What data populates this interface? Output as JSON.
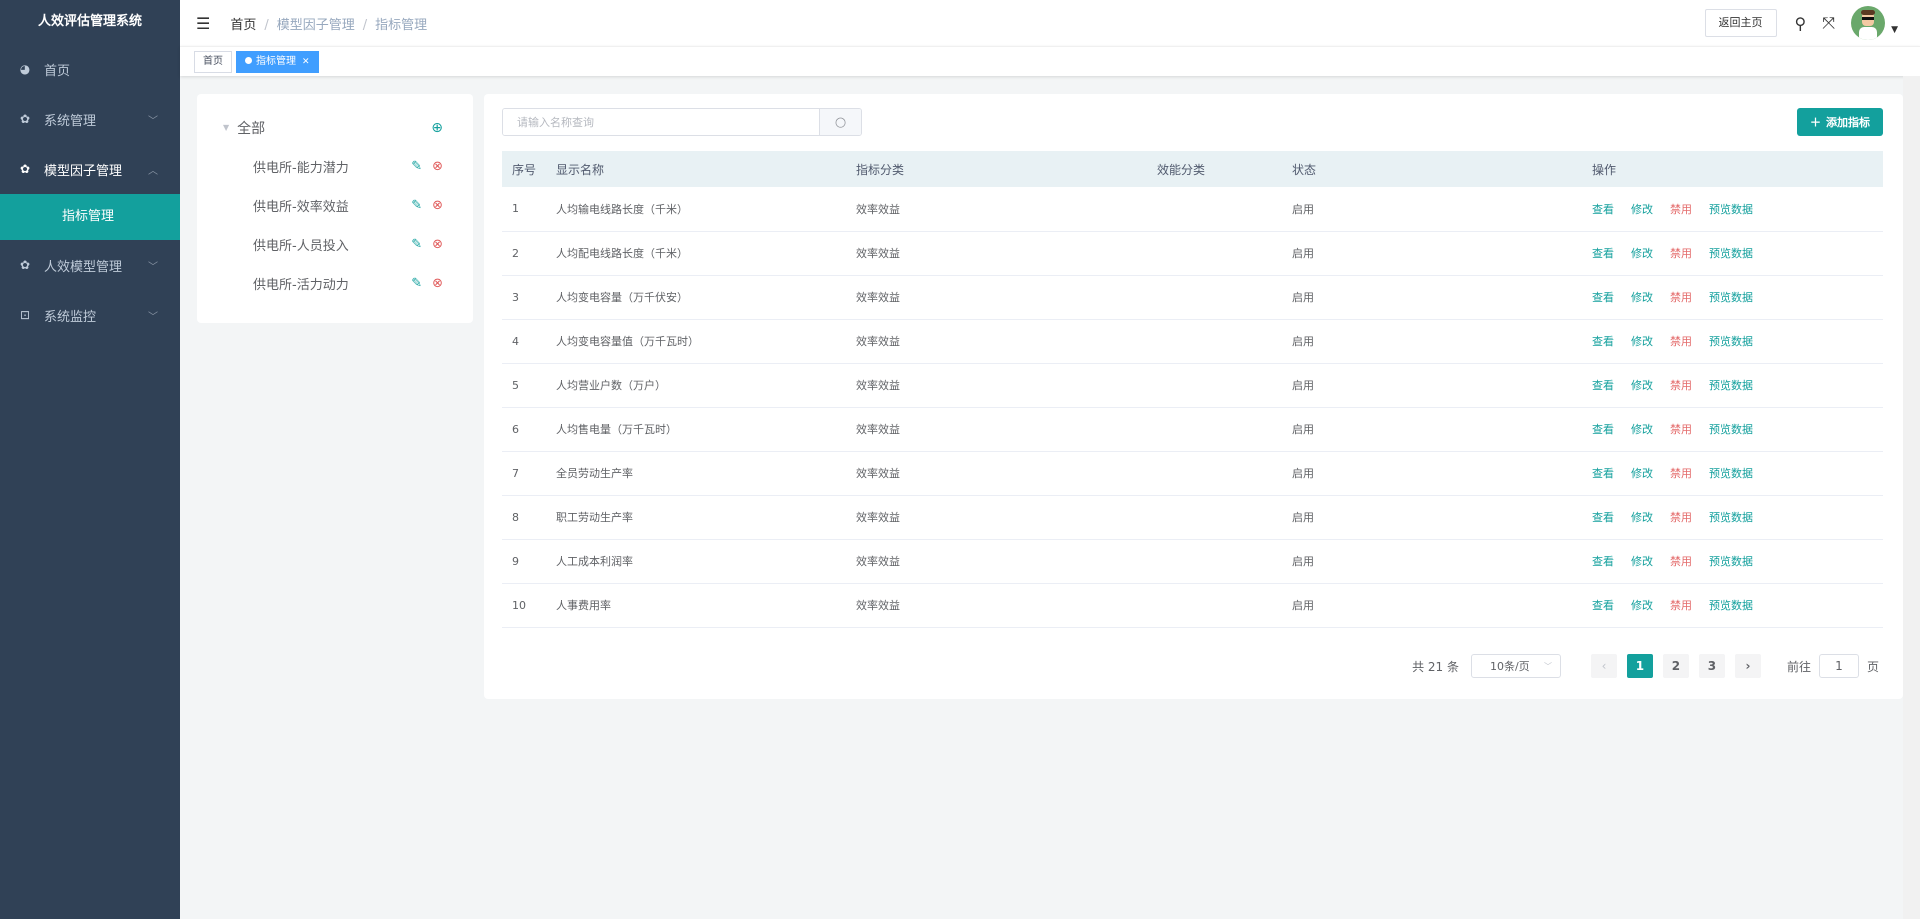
{
  "app": {
    "title": "人效评估管理系统"
  },
  "sidebar": {
    "items": [
      {
        "label": "首页",
        "icon": "dashboard-icon"
      },
      {
        "label": "系统管理",
        "icon": "gear-icon"
      },
      {
        "label": "模型因子管理",
        "icon": "gear-icon",
        "open": true,
        "children": [
          {
            "label": "指标管理",
            "active": true
          }
        ]
      },
      {
        "label": "人效模型管理",
        "icon": "gear-icon"
      },
      {
        "label": "系统监控",
        "icon": "monitor-icon"
      }
    ]
  },
  "header": {
    "breadcrumb": [
      "首页",
      "模型因子管理",
      "指标管理"
    ],
    "home_button": "返回主页"
  },
  "tags": [
    {
      "label": "首页"
    },
    {
      "label": "指标管理",
      "active": true
    }
  ],
  "tree": {
    "root": "全部",
    "children": [
      "供电所-能力潜力",
      "供电所-效率效益",
      "供电所-人员投入",
      "供电所-活力动力"
    ]
  },
  "toolbar": {
    "search_placeholder": "请输入名称查询",
    "add_label": "添加指标"
  },
  "table": {
    "columns": [
      "序号",
      "显示名称",
      "指标分类",
      "效能分类",
      "状态",
      "操作"
    ],
    "actions": [
      "查看",
      "修改",
      "禁用",
      "预览数据"
    ],
    "rows": [
      {
        "no": "1",
        "name": "人均输电线路长度（千米）",
        "category": "效率效益",
        "eff": "",
        "status": "启用"
      },
      {
        "no": "2",
        "name": "人均配电线路长度（千米）",
        "category": "效率效益",
        "eff": "",
        "status": "启用"
      },
      {
        "no": "3",
        "name": "人均变电容量（万千伏安）",
        "category": "效率效益",
        "eff": "",
        "status": "启用"
      },
      {
        "no": "4",
        "name": "人均变电容量值（万千瓦时）",
        "category": "效率效益",
        "eff": "",
        "status": "启用"
      },
      {
        "no": "5",
        "name": "人均营业户数（万户）",
        "category": "效率效益",
        "eff": "",
        "status": "启用"
      },
      {
        "no": "6",
        "name": "人均售电量（万千瓦时）",
        "category": "效率效益",
        "eff": "",
        "status": "启用"
      },
      {
        "no": "7",
        "name": "全员劳动生产率",
        "category": "效率效益",
        "eff": "",
        "status": "启用"
      },
      {
        "no": "8",
        "name": "职工劳动生产率",
        "category": "效率效益",
        "eff": "",
        "status": "启用"
      },
      {
        "no": "9",
        "name": "人工成本利润率",
        "category": "效率效益",
        "eff": "",
        "status": "启用"
      },
      {
        "no": "10",
        "name": "人事费用率",
        "category": "效率效益",
        "eff": "",
        "status": "启用"
      }
    ]
  },
  "pagination": {
    "total_text": "共 21 条",
    "page_size": "10条/页",
    "pages": [
      "1",
      "2",
      "3"
    ],
    "current": "1",
    "goto_label": "前往",
    "goto_value": "1",
    "goto_suffix": "页"
  },
  "colors": {
    "sidebar": "#304156",
    "accent": "#13a09d",
    "danger": "#e46b6b",
    "tag_active": "#409eff"
  }
}
